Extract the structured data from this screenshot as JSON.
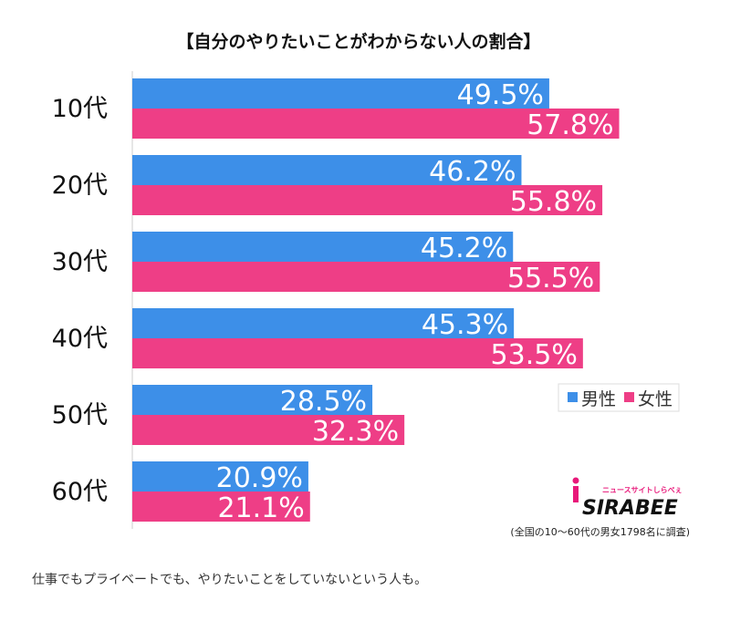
{
  "chart_data": {
    "type": "bar",
    "orientation": "horizontal",
    "title": "【自分のやりたいことがわからない人の割合】",
    "categories": [
      "10代",
      "20代",
      "30代",
      "40代",
      "50代",
      "60代"
    ],
    "series": [
      {
        "name": "男性",
        "values": [
          49.5,
          46.2,
          45.2,
          45.3,
          28.5,
          20.9
        ],
        "labels": [
          "49.5%",
          "46.2%",
          "45.2%",
          "45.3%",
          "28.5%",
          "20.9%"
        ],
        "color": "#3d8fe8"
      },
      {
        "name": "女性",
        "values": [
          57.8,
          55.8,
          55.5,
          53.5,
          32.3,
          21.1
        ],
        "labels": [
          "57.8%",
          "55.8%",
          "55.5%",
          "53.5%",
          "32.3%",
          "21.1%"
        ],
        "color": "#ee3e86"
      }
    ],
    "xlim": [
      0,
      65
    ],
    "legend_position": "right",
    "grid": false
  },
  "logo": {
    "text": "SIRABEE",
    "tagline": "ニュースサイトしらべぇ"
  },
  "survey_note": "(全国の10〜60代の男女1798名に調査)",
  "caption": "仕事でもプライベートでも、やりたいことをしていないという人も。"
}
